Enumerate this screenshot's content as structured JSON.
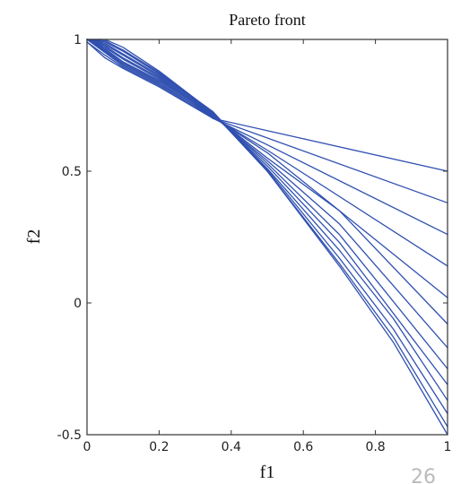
{
  "chart_data": {
    "type": "line",
    "title": "Pareto front",
    "xlabel": "f1",
    "ylabel": "f2",
    "xlim": [
      0,
      1
    ],
    "ylim": [
      -0.5,
      1
    ],
    "xticks": [
      0,
      0.2,
      0.4,
      0.6,
      0.8,
      1
    ],
    "xtick_labels": [
      "0",
      "0.2",
      "0.4",
      "0.6",
      "0.8",
      "1"
    ],
    "yticks": [
      -0.5,
      0,
      0.5,
      1
    ],
    "ytick_labels": [
      "-0.5",
      "0",
      "0.5",
      "1"
    ],
    "grid": false,
    "line_color": "#3050b0",
    "series": [
      {
        "x": [
          0,
          0.05,
          0.1,
          0.2,
          0.3,
          0.35,
          1
        ],
        "y": [
          0.99,
          0.93,
          0.89,
          0.82,
          0.74,
          0.7,
          0.5
        ]
      },
      {
        "x": [
          0,
          0.05,
          0.1,
          0.2,
          0.3,
          0.35,
          1
        ],
        "y": [
          0.99,
          0.94,
          0.895,
          0.825,
          0.745,
          0.7,
          0.38
        ]
      },
      {
        "x": [
          0,
          0.05,
          0.1,
          0.2,
          0.3,
          0.35,
          0.5,
          1
        ],
        "y": [
          1,
          0.95,
          0.9,
          0.83,
          0.75,
          0.7,
          0.6,
          0.26
        ]
      },
      {
        "x": [
          0,
          0.05,
          0.1,
          0.2,
          0.3,
          0.35,
          0.5,
          1
        ],
        "y": [
          1,
          0.955,
          0.905,
          0.835,
          0.75,
          0.705,
          0.58,
          0.14
        ]
      },
      {
        "x": [
          0,
          0.05,
          0.1,
          0.2,
          0.3,
          0.35,
          0.5,
          1
        ],
        "y": [
          1,
          0.96,
          0.91,
          0.84,
          0.755,
          0.705,
          0.57,
          0.02
        ]
      },
      {
        "x": [
          0,
          0.05,
          0.1,
          0.2,
          0.3,
          0.35,
          0.5,
          0.7,
          1
        ],
        "y": [
          1,
          0.965,
          0.915,
          0.845,
          0.76,
          0.71,
          0.55,
          0.35,
          -0.08
        ]
      },
      {
        "x": [
          0,
          0.05,
          0.1,
          0.2,
          0.3,
          0.35,
          0.5,
          0.7,
          1
        ],
        "y": [
          1,
          0.97,
          0.925,
          0.85,
          0.76,
          0.71,
          0.54,
          0.3,
          -0.17
        ]
      },
      {
        "x": [
          0,
          0.05,
          0.1,
          0.2,
          0.3,
          0.35,
          0.5,
          0.7,
          1
        ],
        "y": [
          1,
          0.975,
          0.93,
          0.855,
          0.765,
          0.715,
          0.53,
          0.26,
          -0.25
        ]
      },
      {
        "x": [
          0,
          0.05,
          0.1,
          0.2,
          0.3,
          0.35,
          0.5,
          0.7,
          1
        ],
        "y": [
          1,
          0.98,
          0.94,
          0.86,
          0.765,
          0.715,
          0.52,
          0.23,
          -0.31
        ]
      },
      {
        "x": [
          0,
          0.05,
          0.1,
          0.2,
          0.3,
          0.35,
          0.5,
          0.7,
          0.85,
          1
        ],
        "y": [
          1,
          0.985,
          0.945,
          0.865,
          0.77,
          0.72,
          0.51,
          0.2,
          -0.06,
          -0.37
        ]
      },
      {
        "x": [
          0,
          0.05,
          0.1,
          0.2,
          0.3,
          0.35,
          0.5,
          0.7,
          0.85,
          1
        ],
        "y": [
          1,
          0.99,
          0.955,
          0.87,
          0.77,
          0.72,
          0.505,
          0.17,
          -0.1,
          -0.42
        ]
      },
      {
        "x": [
          0,
          0.05,
          0.1,
          0.2,
          0.3,
          0.35,
          0.5,
          0.7,
          0.85,
          1
        ],
        "y": [
          1,
          0.995,
          0.96,
          0.875,
          0.775,
          0.72,
          0.5,
          0.15,
          -0.13,
          -0.47
        ]
      },
      {
        "x": [
          0,
          0.05,
          0.1,
          0.2,
          0.3,
          0.35,
          0.5,
          0.7,
          0.85,
          1
        ],
        "y": [
          1,
          1,
          0.97,
          0.88,
          0.775,
          0.725,
          0.5,
          0.14,
          -0.15,
          -0.5
        ]
      }
    ]
  },
  "page_number": "26"
}
